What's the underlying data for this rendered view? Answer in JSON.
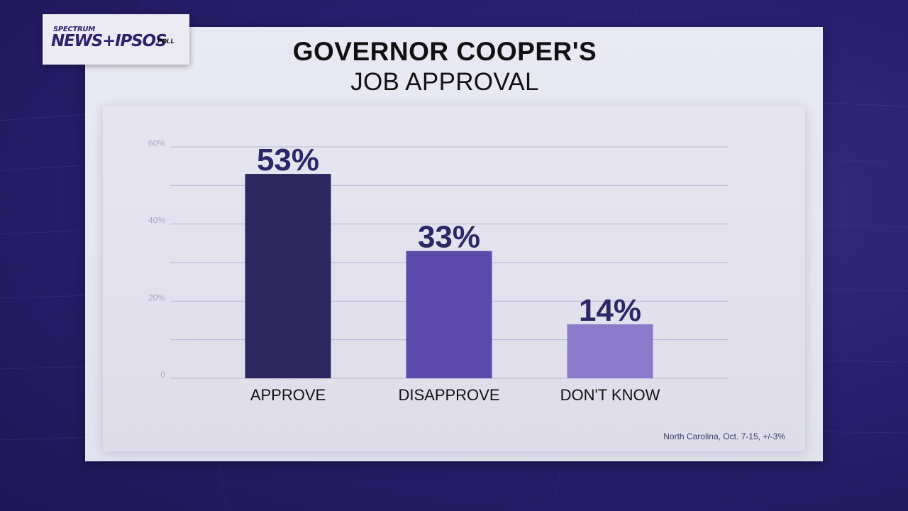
{
  "logo": {
    "top": "SPECTRUM",
    "main": "NEWS+IPSOS",
    "sub": "POLL"
  },
  "title_line1": "GOVERNOR COOPER'S",
  "title_line2": "JOB APPROVAL",
  "source_note": "North Carolina, Oct. 7-15, +/-3%",
  "colors": {
    "approve": "#2c275f",
    "disapprove": "#5b4aac",
    "dont_know": "#8a7ac9",
    "label": "#2c2766",
    "gridline": "#b9b6d6",
    "tick": "#a9a7c6"
  },
  "chart_data": {
    "type": "bar",
    "title": "GOVERNOR COOPER'S JOB APPROVAL",
    "categories": [
      "APPROVE",
      "DISAPPROVE",
      "DON'T KNOW"
    ],
    "values": [
      53,
      33,
      14
    ],
    "data_labels": [
      "53%",
      "33%",
      "14%"
    ],
    "y_ticks": [
      "0",
      "20%",
      "40%",
      "60%"
    ],
    "y_tick_values": [
      0,
      20,
      40,
      60
    ],
    "ylim": [
      0,
      60
    ],
    "grid": true,
    "gridline_step": 10
  }
}
